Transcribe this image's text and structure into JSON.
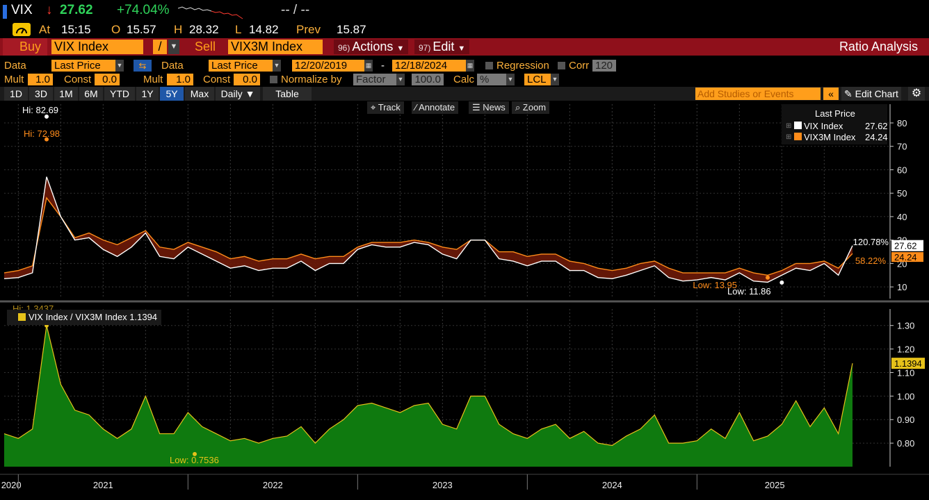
{
  "ticker": {
    "symbol": "VIX",
    "arrow": "↓",
    "last": "27.62",
    "change_pct": "+74.04%",
    "bid_ask": "-- / --",
    "at_label": "At",
    "time": "15:15",
    "open_label": "O",
    "open": "15.57",
    "high_label": "H",
    "high": "28.32",
    "low_label": "L",
    "low": "14.82",
    "prev_label": "Prev",
    "prev": "15.87"
  },
  "bar": {
    "buy_label": "Buy",
    "buy_value": "VIX Index",
    "op": "/",
    "sell_label": "Sell",
    "sell_value": "VIX3M Index",
    "actions_num": "96)",
    "actions_label": "Actions",
    "edit_num": "97)",
    "edit_label": "Edit",
    "title": "Ratio Analysis"
  },
  "controls": {
    "data_label": "Data",
    "data1": "Last Price",
    "data2_label": "Data",
    "data2": "Last Price",
    "start_date": "12/20/2019",
    "dash": "-",
    "end_date": "12/18/2024",
    "regression": "Regression",
    "corr": "Corr",
    "corr_value": "120",
    "mult_label": "Mult",
    "mult1": "1.0",
    "const_label": "Const",
    "const1": "0.0",
    "mult2_label": "Mult",
    "mult2": "1.0",
    "const2_label": "Const",
    "const2": "0.0",
    "normalize": "Normalize by",
    "factor": "Factor",
    "factor_value": "100.0",
    "calc": "Calc",
    "calc_value": "%",
    "lcl": "LCL"
  },
  "tabs": {
    "periods": [
      "1D",
      "3D",
      "1M",
      "6M",
      "YTD",
      "1Y",
      "5Y",
      "Max"
    ],
    "selected": "5Y",
    "frequency": "Daily ▼",
    "table": "Table",
    "studies_placeholder": "Add Studies or Events",
    "collapse": "«",
    "edit_chart": "Edit Chart",
    "settings_icon": "gear-icon"
  },
  "tools": {
    "track": "Track",
    "annotate": "Annotate",
    "news": "News",
    "zoom": "Zoom"
  },
  "legend": {
    "title": "Last Price",
    "items": [
      {
        "name": "VIX Index",
        "value": "27.62",
        "color": "#ffffff"
      },
      {
        "name": "VIX3M Index",
        "value": "24.24",
        "color": "#ff8c1a"
      }
    ]
  },
  "ratio_legend": {
    "name": "VIX Index / VIX3M Index",
    "value": "1.1394",
    "color": "#e6c21a"
  },
  "chart_data": [
    {
      "type": "line",
      "x": [
        "2019-12",
        "2020-01",
        "2020-02",
        "2020-03",
        "2020-04",
        "2020-05",
        "2020-06",
        "2020-07",
        "2020-08",
        "2020-09",
        "2020-10",
        "2020-11",
        "2020-12",
        "2021-01",
        "2021-02",
        "2021-03",
        "2021-04",
        "2021-05",
        "2021-06",
        "2021-07",
        "2021-08",
        "2021-09",
        "2021-10",
        "2021-11",
        "2021-12",
        "2022-01",
        "2022-02",
        "2022-03",
        "2022-04",
        "2022-05",
        "2022-06",
        "2022-07",
        "2022-08",
        "2022-09",
        "2022-10",
        "2022-11",
        "2022-12",
        "2023-01",
        "2023-02",
        "2023-03",
        "2023-04",
        "2023-05",
        "2023-06",
        "2023-07",
        "2023-08",
        "2023-09",
        "2023-10",
        "2023-11",
        "2023-12",
        "2024-01",
        "2024-02",
        "2024-03",
        "2024-04",
        "2024-05",
        "2024-06",
        "2024-07",
        "2024-08",
        "2024-09",
        "2024-10",
        "2024-11",
        "2024-12"
      ],
      "series": [
        {
          "name": "VIX Index",
          "color": "#ffffff",
          "values": [
            13.5,
            14,
            16,
            57,
            40,
            30,
            31,
            26,
            23,
            27,
            33,
            23,
            22,
            27,
            24,
            21,
            18,
            19,
            17,
            18,
            18,
            21,
            17,
            20,
            20,
            26,
            28,
            27,
            27,
            29,
            28,
            24,
            22,
            30,
            30,
            22,
            21,
            19,
            21,
            21,
            17,
            17,
            14,
            13.5,
            15,
            17,
            19,
            14,
            12.5,
            13,
            14,
            13,
            16,
            12.5,
            12,
            15,
            18,
            17,
            20,
            15,
            27.62
          ]
        },
        {
          "name": "VIX3M Index",
          "color": "#ff8c1a",
          "values": [
            16,
            17,
            19,
            48,
            40,
            31,
            33,
            30,
            28,
            31,
            34,
            27,
            26,
            29,
            27,
            25,
            22,
            23,
            21,
            22,
            22,
            24,
            22,
            23,
            23,
            27,
            29,
            29,
            29,
            30,
            29,
            27,
            26,
            30,
            30,
            25,
            25,
            23,
            24,
            24,
            21,
            20,
            18,
            17,
            18,
            20,
            21,
            18,
            16,
            16,
            16,
            16,
            18,
            16,
            15,
            17,
            20,
            20,
            21,
            18,
            24.24
          ]
        }
      ],
      "annotations": [
        {
          "text": "Hi: 82.69",
          "series": "VIX Index"
        },
        {
          "text": "Hi: 72.98",
          "series": "VIX3M Index"
        },
        {
          "text": "Low: 13.95",
          "series": "VIX3M Index"
        },
        {
          "text": "Low: 11.86",
          "series": "VIX Index"
        },
        {
          "text": "120.78%",
          "series": "VIX Index"
        },
        {
          "text": "58.22%",
          "series": "VIX3M Index"
        }
      ],
      "ylim": [
        5,
        88
      ],
      "yticks": [
        10,
        20,
        30,
        40,
        50,
        60,
        70,
        80
      ],
      "grid": true,
      "legend": "top-right"
    },
    {
      "type": "area",
      "x": [
        "2019-12",
        "2020-01",
        "2020-02",
        "2020-03",
        "2020-04",
        "2020-05",
        "2020-06",
        "2020-07",
        "2020-08",
        "2020-09",
        "2020-10",
        "2020-11",
        "2020-12",
        "2021-01",
        "2021-02",
        "2021-03",
        "2021-04",
        "2021-05",
        "2021-06",
        "2021-07",
        "2021-08",
        "2021-09",
        "2021-10",
        "2021-11",
        "2021-12",
        "2022-01",
        "2022-02",
        "2022-03",
        "2022-04",
        "2022-05",
        "2022-06",
        "2022-07",
        "2022-08",
        "2022-09",
        "2022-10",
        "2022-11",
        "2022-12",
        "2023-01",
        "2023-02",
        "2023-03",
        "2023-04",
        "2023-05",
        "2023-06",
        "2023-07",
        "2023-08",
        "2023-09",
        "2023-10",
        "2023-11",
        "2023-12",
        "2024-01",
        "2024-02",
        "2024-03",
        "2024-04",
        "2024-05",
        "2024-06",
        "2024-07",
        "2024-08",
        "2024-09",
        "2024-10",
        "2024-11",
        "2024-12"
      ],
      "series": [
        {
          "name": "VIX Index / VIX3M Index",
          "color": "#e6c21a",
          "values": [
            0.84,
            0.82,
            0.86,
            1.3,
            1.05,
            0.94,
            0.92,
            0.86,
            0.82,
            0.86,
            1.0,
            0.84,
            0.84,
            0.93,
            0.87,
            0.84,
            0.81,
            0.82,
            0.8,
            0.82,
            0.83,
            0.87,
            0.8,
            0.86,
            0.9,
            0.96,
            0.97,
            0.95,
            0.93,
            0.96,
            0.97,
            0.88,
            0.86,
            1.0,
            1.0,
            0.88,
            0.84,
            0.82,
            0.86,
            0.88,
            0.82,
            0.85,
            0.8,
            0.79,
            0.83,
            0.86,
            0.92,
            0.8,
            0.8,
            0.81,
            0.86,
            0.82,
            0.93,
            0.81,
            0.83,
            0.88,
            0.98,
            0.87,
            0.95,
            0.84,
            1.1394
          ]
        }
      ],
      "annotations": [
        {
          "text": "Hi: 1.3437"
        },
        {
          "text": "Low: 0.7536"
        }
      ],
      "ylim": [
        0.7,
        1.37
      ],
      "yticks": [
        "0.80",
        "0.90",
        "1.00",
        "1.10",
        "1.20",
        "1.30"
      ],
      "xticks": [
        "2020",
        "2021",
        "2022",
        "2023",
        "2024",
        "2025"
      ],
      "grid": true,
      "legend": "top-left"
    }
  ]
}
